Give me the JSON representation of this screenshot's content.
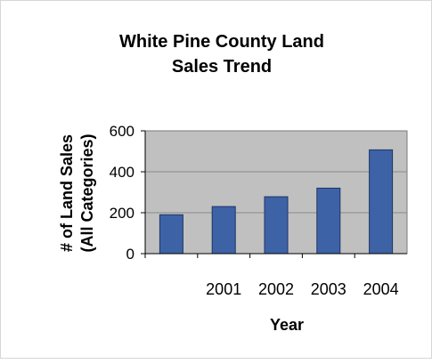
{
  "chart_data": {
    "type": "bar",
    "title_lines": [
      "White Pine County Land",
      "Sales Trend"
    ],
    "xlabel": "Year",
    "ylabel_lines": [
      "# of Land Sales",
      "(All Categories)"
    ],
    "categories": [
      "",
      "2001",
      "2002",
      "2003",
      "2004"
    ],
    "values": [
      190,
      230,
      278,
      320,
      507
    ],
    "ylim": [
      0,
      600
    ],
    "yticks": [
      "0",
      "200",
      "400",
      "600"
    ],
    "ytick_values": [
      0,
      200,
      400,
      600
    ],
    "grid": true,
    "colors": {
      "bar": "#3d63a6",
      "bar_edge": "#1f3466",
      "plot_bg": "#c0c0c0",
      "grid": "#8a8a8a",
      "text": "#000000"
    }
  }
}
